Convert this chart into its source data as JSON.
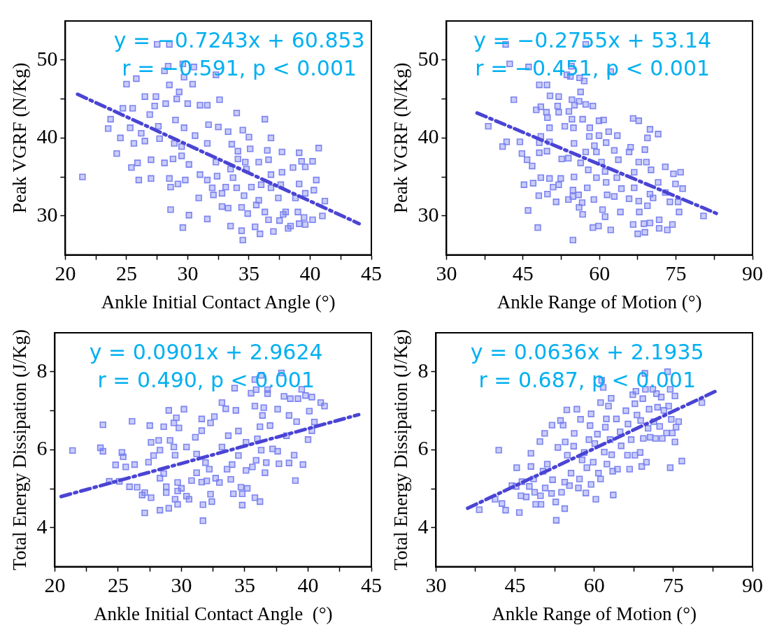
{
  "chart_data": [
    {
      "type": "scatter",
      "xlabel": "Ankle Initial Contact Angle (°)",
      "ylabel": "Peak VGRF (N/Kg)",
      "annotations": [
        "y = −0.7243x + 60.853",
        "r = −0.591, p < 0.001"
      ],
      "xlim": [
        20,
        45
      ],
      "xticks": [
        20,
        {
          "value": 22.5,
          "label": null
        },
        25,
        {
          "value": 27.5,
          "label": null
        },
        30,
        {
          "value": 32.5,
          "label": null
        },
        35,
        {
          "value": 37.5,
          "label": null
        },
        40,
        {
          "value": 42.5,
          "label": null
        },
        45
      ],
      "ylim": [
        25,
        55
      ],
      "yticks": [
        30,
        {
          "value": 35,
          "label": null
        },
        40,
        {
          "value": 45,
          "label": null
        },
        50
      ],
      "series": [
        {
          "type": "scatter",
          "marker": "square",
          "color": "#7b83f0",
          "x": [
            21.4,
            27.5,
            28.5,
            28.1,
            28.4,
            29.6,
            30.5,
            29.7,
            30.4,
            32.3,
            25.0,
            25.8,
            26.5,
            27.4,
            29.3,
            32.6,
            28.5,
            29.1,
            24.7,
            25.5,
            27.3,
            28.2,
            30.0,
            31.0,
            31.6,
            34.0,
            23.7,
            23.5,
            25.3,
            26.2,
            26.9,
            27.6,
            29.0,
            29.7,
            30.6,
            31.7,
            32.5,
            33.3,
            34.5,
            35.0,
            36.3,
            36.8,
            24.5,
            24.2,
            25.6,
            26.5,
            27.7,
            28.9,
            29.5,
            31.6,
            33.6,
            34.1,
            35.1,
            36.5,
            37.7,
            39.1,
            40.7,
            25.4,
            25.9,
            27.0,
            28.1,
            28.8,
            29.5,
            30.1,
            32.3,
            34.1,
            34.7,
            35.8,
            36.6,
            39.3,
            40.2,
            26.0,
            27.0,
            28.5,
            29.8,
            31.0,
            31.6,
            32.4,
            33.5,
            33.7,
            34.8,
            36.8,
            37.7,
            38.6,
            39.6,
            40.5,
            29.2,
            28.6,
            32.0,
            33.1,
            34.0,
            35.2,
            36.0,
            36.8,
            37.6,
            39.1,
            40.3,
            30.9,
            32.1,
            32.8,
            34.6,
            35.8,
            37.4,
            38.8,
            39.6,
            41.2,
            32.8,
            33.3,
            34.4,
            35.6,
            36.3,
            38.0,
            39.0,
            41.0,
            28.6,
            30.1,
            31.6,
            34.9,
            37.8,
            39.5,
            40.2,
            29.6,
            33.5,
            35.5,
            36.6,
            37.5,
            38.4,
            39.1,
            39.6,
            34.4,
            35.9,
            37.0,
            34.5,
            38.2
          ],
          "values": [
            35.0,
            52.0,
            52.0,
            48.6,
            49.2,
            49.5,
            49.1,
            47.8,
            46.9,
            48.1,
            46.9,
            47.6,
            45.3,
            45.3,
            45.9,
            44.9,
            46.8,
            45.0,
            43.8,
            43.8,
            44.1,
            44.4,
            44.4,
            44.2,
            44.2,
            43.2,
            42.4,
            41.2,
            41.3,
            40.6,
            43.0,
            41.5,
            42.3,
            41.3,
            40.3,
            41.7,
            41.4,
            40.8,
            41.0,
            40.1,
            42.4,
            40.0,
            40.0,
            38.0,
            39.3,
            39.6,
            39.9,
            39.3,
            38.9,
            39.3,
            39.2,
            38.3,
            38.6,
            38.4,
            38.2,
            38.1,
            38.7,
            36.2,
            36.8,
            37.2,
            36.8,
            37.3,
            37.7,
            36.6,
            36.9,
            37.3,
            36.9,
            36.9,
            37.2,
            37.0,
            37.0,
            34.6,
            34.8,
            34.8,
            34.6,
            35.3,
            34.6,
            35.1,
            36.0,
            34.9,
            36.0,
            35.3,
            35.6,
            36.2,
            36.3,
            34.6,
            34.1,
            33.7,
            33.6,
            33.7,
            33.6,
            33.7,
            34.0,
            33.6,
            34.0,
            34.1,
            33.3,
            32.3,
            32.7,
            32.9,
            32.6,
            32.0,
            32.3,
            32.3,
            32.9,
            31.9,
            31.2,
            31.0,
            31.1,
            31.4,
            30.5,
            30.5,
            30.5,
            30.0,
            30.8,
            30.1,
            29.6,
            30.3,
            30.2,
            29.8,
            29.5,
            28.5,
            28.7,
            28.6,
            29.5,
            29.4,
            28.7,
            29.0,
            28.9,
            28.1,
            27.7,
            28.0,
            26.9,
            28.4
          ]
        },
        {
          "type": "line",
          "color": "#4a44d4",
          "line_style": "dashed",
          "x": [
            21,
            44
          ],
          "values": [
            45.6,
            29.0
          ]
        }
      ]
    },
    {
      "type": "scatter",
      "xlabel": "Ankle Range of Motion (°)",
      "ylabel": "Peak VGRF (N/Kg)",
      "annotations": [
        "y = −0.2755x + 53.14",
        "r = −0.451, p < 0.001"
      ],
      "xlim": [
        30,
        90
      ],
      "xticks": [
        30,
        {
          "value": 37.5,
          "label": null
        },
        45,
        {
          "value": 52.5,
          "label": null
        },
        60,
        {
          "value": 67.5,
          "label": null
        },
        75,
        {
          "value": 82.5,
          "label": null
        },
        90
      ],
      "ylim": [
        25,
        55
      ],
      "yticks": [
        30,
        {
          "value": 35,
          "label": null
        },
        40,
        {
          "value": 45,
          "label": null
        },
        50
      ],
      "series": [
        {
          "type": "scatter",
          "marker": "square",
          "color": "#7b83f0",
          "x": [
            41.6,
            57.3,
            42.4,
            46.1,
            54.5,
            62.2,
            53.6,
            54.3,
            56.1,
            57.0,
            48.2,
            49.7,
            56.3,
            50.3,
            52.0,
            54.6,
            43.2,
            56.0,
            57.3,
            55.1,
            48.5,
            51.8,
            58.7,
            47.6,
            49.6,
            52.0,
            54.0,
            49.8,
            54.6,
            56.7,
            59.9,
            60.8,
            66.6,
            67.7,
            69.9,
            71.5,
            50.2,
            53.2,
            54.9,
            58.1,
            58.0,
            61.8,
            63.5,
            59.9,
            69.4,
            38.2,
            41.8,
            41.0,
            44.4,
            48.5,
            50.2,
            48.2,
            55.0,
            59.0,
            61.3,
            44.8,
            48.2,
            49.7,
            57.3,
            59.4,
            62.9,
            65.8,
            66.1,
            68.9,
            45.8,
            46.8,
            52.6,
            53.9,
            56.3,
            60.4,
            63.7,
            67.7,
            69.2,
            57.8,
            61.1,
            66.8,
            70.1,
            72.9,
            74.5,
            75.9,
            48.5,
            50.2,
            52.4,
            55.0,
            59.4,
            61.3,
            63.4,
            45.2,
            47.0,
            50.9,
            52.0,
            54.8,
            57.6,
            64.3,
            66.8,
            71.5,
            74.9,
            76.3,
            49.8,
            48.1,
            54.8,
            55.9,
            61.5,
            62.9,
            69.9,
            72.9,
            51.5,
            53.9,
            56.6,
            58.9,
            65.8,
            67.7,
            70.5,
            73.8,
            75.4,
            46.0,
            56.0,
            56.7,
            60.6,
            61.1,
            64.1,
            67.8,
            69.4,
            75.6,
            80.4,
            47.9,
            58.7,
            59.8,
            62.2,
            66.6,
            68.7,
            69.9,
            67.5,
            68.9,
            71.7,
            73.3,
            74.3,
            71.7,
            54.8
          ],
          "values": [
            52.0,
            52.0,
            49.5,
            49.1,
            49.2,
            48.5,
            48.1,
            47.9,
            47.7,
            47.3,
            46.8,
            46.8,
            45.9,
            45.4,
            45.3,
            44.9,
            44.9,
            44.7,
            44.3,
            44.2,
            44.0,
            44.1,
            44.1,
            43.6,
            43.3,
            43.3,
            43.4,
            42.6,
            42.4,
            42.4,
            42.2,
            42.3,
            42.5,
            42.2,
            41.1,
            40.5,
            41.3,
            41.5,
            41.3,
            41.3,
            40.2,
            40.8,
            40.3,
            40.3,
            40.0,
            41.5,
            39.5,
            38.9,
            39.5,
            40.2,
            39.5,
            39.4,
            39.3,
            39.0,
            39.4,
            38.0,
            38.1,
            38.3,
            38.2,
            38.2,
            38.4,
            38.2,
            38.8,
            38.5,
            37.2,
            36.4,
            37.3,
            37.4,
            36.8,
            36.9,
            37.2,
            36.9,
            36.9,
            35.9,
            35.7,
            35.6,
            35.9,
            36.3,
            35.4,
            35.6,
            34.9,
            34.8,
            34.8,
            35.0,
            34.9,
            34.3,
            34.9,
            34.0,
            34.2,
            33.7,
            34.0,
            33.3,
            33.6,
            33.5,
            33.6,
            34.3,
            34.1,
            33.5,
            32.8,
            32.6,
            32.5,
            32.7,
            32.7,
            32.5,
            32.8,
            33.0,
            31.8,
            32.1,
            31.7,
            32.1,
            32.2,
            31.9,
            32.3,
            31.8,
            31.8,
            30.7,
            31.1,
            30.2,
            30.8,
            29.9,
            30.5,
            30.5,
            31.3,
            30.5,
            30.0,
            28.5,
            28.5,
            28.7,
            28.2,
            28.9,
            29.0,
            29.1,
            27.7,
            27.9,
            29.5,
            28.2,
            28.9,
            28.4,
            26.9
          ]
        },
        {
          "type": "line",
          "color": "#4a44d4",
          "line_style": "dashed",
          "x": [
            36,
            83
          ],
          "values": [
            43.2,
            30.3
          ]
        }
      ]
    },
    {
      "type": "scatter",
      "xlabel": "Ankle Initial Contact Angle  (°)",
      "ylabel": "Total Energy Dissipation (J/Kg)",
      "annotations": [
        "y = 0.0901x + 2.9624",
        "r = 0.490, p < 0.001"
      ],
      "xlim": [
        20,
        45
      ],
      "xticks": [
        20,
        {
          "value": 22.5,
          "label": null
        },
        25,
        {
          "value": 27.5,
          "label": null
        },
        30,
        {
          "value": 32.5,
          "label": null
        },
        35,
        {
          "value": 37.5,
          "label": null
        },
        40,
        {
          "value": 42.5,
          "label": null
        },
        45
      ],
      "ylim": [
        3,
        9
      ],
      "yticks": [
        4,
        {
          "value": 5,
          "label": null
        },
        6,
        {
          "value": 7,
          "label": null
        },
        8
      ],
      "series": [
        {
          "type": "scatter",
          "marker": "square",
          "color": "#7b83f0",
          "x": [
            21.4,
            23.8,
            23.6,
            23.8,
            24.3,
            24.8,
            25.1,
            25.3,
            25.4,
            25.6,
            25.9,
            26.1,
            26.3,
            26.5,
            26.9,
            27.1,
            27.1,
            27.5,
            27.6,
            27.6,
            27.4,
            27.8,
            28.2,
            28.3,
            28.3,
            28.3,
            28.6,
            28.6,
            28.8,
            28.8,
            29.0,
            29.0,
            29.1,
            29.4,
            29.4,
            29.5,
            29.5,
            29.6,
            29.7,
            29.7,
            29.7,
            29.8,
            30.0,
            30.2,
            30.4,
            30.4,
            30.6,
            30.8,
            31.1,
            31.2,
            31.2,
            31.6,
            31.6,
            31.6,
            31.7,
            31.7,
            31.9,
            32.0,
            32.2,
            32.3,
            32.4,
            32.3,
            32.6,
            32.7,
            33.0,
            33.2,
            33.5,
            33.2,
            33.6,
            33.7,
            34.0,
            33.9,
            34.1,
            34.2,
            34.3,
            34.5,
            34.5,
            34.7,
            34.8,
            34.8,
            35.1,
            35.1,
            35.2,
            35.5,
            35.6,
            35.8,
            35.8,
            35.8,
            35.9,
            36.0,
            36.2,
            36.2,
            36.3,
            36.4,
            36.5,
            36.6,
            36.7,
            36.8,
            36.8,
            37.0,
            37.2,
            37.6,
            37.6,
            37.7,
            37.9,
            38.1,
            38.3,
            38.5,
            38.5,
            38.6,
            38.9,
            39.0,
            39.1,
            39.2,
            39.5,
            39.6,
            39.8,
            40.0,
            40.1,
            40.3,
            40.3,
            40.5,
            41.0,
            41.3,
            35.9,
            36.3
          ],
          "values": [
            5.98,
            6.64,
            6.05,
            5.96,
            5.19,
            5.61,
            5.19,
            5.93,
            5.82,
            5.56,
            5.05,
            6.73,
            5.62,
            5.04,
            4.84,
            4.9,
            4.38,
            6.62,
            6.19,
            4.77,
            5.68,
            5.85,
            6.24,
            5.99,
            4.45,
            5.27,
            6.59,
            5.39,
            5.05,
            4.9,
            7.01,
            4.5,
            6.24,
            6.07,
            6.69,
            5.86,
            4.73,
            6.82,
            5.16,
            4.94,
            4.6,
            6.56,
            5.01,
            7.04,
            6.07,
            4.81,
            4.73,
            5.21,
            6.32,
            5.89,
            5.41,
            6.79,
            6.49,
            5.17,
            4.59,
            4.18,
            5.67,
            5.2,
            5.5,
            4.86,
            4.67,
            6.69,
            6.85,
            5.27,
            5.16,
            7.21,
            7.05,
            6.07,
            5.5,
            6.36,
            5.62,
            5.24,
            4.87,
            7.58,
            7.01,
            6.48,
            5.85,
            5.04,
            4.87,
            4.58,
            6.19,
            5.47,
            5.01,
            7.45,
            5.56,
            7.8,
            7.12,
            4.77,
            7.54,
            6.28,
            6.59,
            4.67,
            7.91,
            6.88,
            7.08,
            5.41,
            5.67,
            7.54,
            7.44,
            6.62,
            6.02,
            7.04,
            5.96,
            5.64,
            7.97,
            7.37,
            6.36,
            6.88,
            5.66,
            7.31,
            5.86,
            5.21,
            6.72,
            7.31,
            7.55,
            5.62,
            7.39,
            6.26,
            6.99,
            7.35,
            6.49,
            6.71,
            7.21,
            7.12,
            5.73,
            5.99
          ]
        },
        {
          "type": "line",
          "color": "#4a44d4",
          "line_style": "dashed",
          "x": [
            20.5,
            44
          ],
          "values": [
            4.8,
            6.9
          ]
        }
      ]
    },
    {
      "type": "scatter",
      "xlabel": "Ankle Range of Motion (°)",
      "ylabel": "Total Energy Dissipation (J/Kg)",
      "annotations": [
        "y = 0.0636x + 2.1935",
        "r = 0.687, p < 0.001"
      ],
      "xlim": [
        30,
        90
      ],
      "xticks": [
        30,
        {
          "value": 37.5,
          "label": null
        },
        45,
        {
          "value": 52.5,
          "label": null
        },
        60,
        {
          "value": 67.5,
          "label": null
        },
        75,
        {
          "value": 82.5,
          "label": null
        },
        90
      ],
      "ylim": [
        3,
        9
      ],
      "yticks": [
        4,
        {
          "value": 5,
          "label": null
        },
        6,
        {
          "value": 7,
          "label": null
        },
        8
      ],
      "series": [
        {
          "type": "scatter",
          "marker": "square",
          "color": "#7b83f0",
          "x": [
            38.2,
            41.2,
            41.9,
            42.5,
            43.2,
            44.4,
            45.2,
            45.3,
            45.8,
            46.1,
            46.3,
            47.1,
            47.7,
            48.0,
            48.0,
            48.5,
            48.7,
            48.9,
            49.7,
            49.8,
            49.9,
            50.3,
            50.6,
            50.7,
            51.1,
            51.9,
            52.0,
            52.1,
            52.7,
            52.8,
            53.1,
            53.6,
            53.8,
            54.1,
            54.4,
            54.4,
            54.5,
            54.8,
            54.9,
            55.3,
            55.6,
            56.1,
            56.2,
            56.7,
            57.0,
            57.2,
            57.4,
            57.7,
            58.1,
            58.4,
            58.6,
            59.0,
            59.2,
            59.4,
            59.4,
            59.8,
            60.1,
            60.3,
            60.6,
            60.8,
            61.2,
            61.2,
            61.4,
            61.7,
            61.9,
            62.1,
            62.3,
            62.4,
            62.7,
            63.0,
            63.2,
            63.3,
            63.5,
            63.6,
            64.2,
            64.4,
            64.9,
            65.1,
            66.0,
            66.3,
            66.4,
            66.7,
            67.0,
            67.3,
            67.7,
            67.7,
            67.9,
            68.1,
            68.7,
            68.8,
            69.0,
            69.2,
            69.3,
            69.6,
            69.7,
            69.9,
            70.2,
            70.4,
            70.6,
            71.1,
            71.3,
            71.6,
            71.8,
            72.0,
            72.4,
            72.7,
            72.9,
            73.2,
            73.7,
            73.9,
            74.1,
            74.4,
            74.4,
            74.6,
            74.8,
            75.3,
            75.3,
            75.5,
            76.0,
            76.6,
            80.4
          ],
          "values": [
            4.46,
            4.73,
            5.99,
            4.62,
            4.45,
            5.08,
            5.06,
            5.54,
            4.39,
            4.82,
            5.18,
            4.79,
            5.06,
            5.91,
            5.57,
            5.25,
            4.91,
            4.6,
            6.21,
            4.82,
            4.6,
            5.45,
            6.42,
            5.02,
            5.63,
            4.88,
            6.63,
            5.23,
            4.66,
            4.19,
            6.06,
            6.75,
            4.91,
            6.63,
            5.17,
            4.49,
            6.2,
            7.02,
            5.86,
            5.08,
            5.4,
            6.09,
            6.42,
            7.04,
            5.02,
            5.25,
            6.78,
            5.74,
            5.93,
            4.89,
            5.54,
            6.26,
            6.62,
            6.92,
            5.11,
            5.68,
            6.16,
            4.73,
            6.4,
            5.4,
            7.21,
            5.25,
            7.78,
            7.6,
            5.94,
            6.58,
            6.79,
            5.63,
            7.12,
            6.26,
            7.32,
            5.87,
            5.45,
            4.84,
            6.79,
            5.5,
            6.46,
            6.1,
            7.0,
            5.86,
            6.66,
            5.5,
            6.26,
            7.41,
            7.18,
            5.86,
            7.5,
            6.89,
            5.93,
            6.75,
            5.57,
            7.31,
            6.29,
            7.96,
            7.55,
            5.68,
            6.55,
            7.04,
            6.32,
            7.55,
            6.72,
            6.29,
            7.44,
            7.09,
            6.6,
            7.35,
            6.29,
            7.01,
            6.43,
            8.0,
            7.12,
            5.54,
            7.55,
            6.78,
            6.43,
            7.38,
            6.2,
            6.58,
            6.72,
            5.71,
            7.21
          ]
        },
        {
          "type": "line",
          "color": "#4a44d4",
          "line_style": "dashed",
          "x": [
            36,
            83
          ],
          "values": [
            4.5,
            7.5
          ]
        }
      ]
    }
  ]
}
